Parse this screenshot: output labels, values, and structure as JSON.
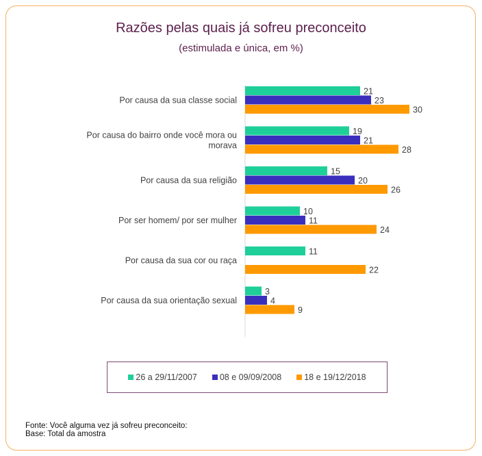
{
  "header": {
    "title": "Razões pelas quais já sofreu preconceito",
    "subtitle": "(estimulada e única, em %)"
  },
  "chart_data": {
    "type": "bar",
    "orientation": "horizontal",
    "title": "Razões pelas quais já sofreu preconceito",
    "subtitle": "(estimulada e única, em %)",
    "categories": [
      [
        "Por causa da sua classe social"
      ],
      [
        "Por causa do bairro onde você mora ou",
        "morava"
      ],
      [
        "Por causa da sua religião"
      ],
      [
        "Por ser homem/ por ser mulher"
      ],
      [
        "Por causa da sua cor ou raça"
      ],
      [
        "Por causa da sua orientação sexual"
      ]
    ],
    "series": [
      {
        "name": "26 a 29/11/2007",
        "color": "#1fcf9a",
        "values": [
          21,
          19,
          15,
          10,
          11,
          3
        ]
      },
      {
        "name": "08 e 09/09/2008",
        "color": "#3a2fbd",
        "values": [
          23,
          21,
          20,
          11,
          null,
          4
        ]
      },
      {
        "name": "18 e 19/12/2018",
        "color": "#ff9900",
        "values": [
          30,
          28,
          26,
          24,
          22,
          9
        ]
      }
    ],
    "xlim": [
      0,
      35
    ],
    "grid": false,
    "legend_position": "bottom"
  },
  "footer": {
    "source": "Fonte: Você alguma vez já sofreu preconceito:",
    "base": "Base: Total da amostra"
  }
}
